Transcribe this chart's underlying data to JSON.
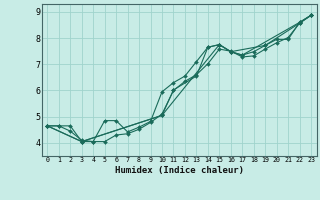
{
  "xlabel": "Humidex (Indice chaleur)",
  "bg_color": "#c8ece6",
  "grid_color": "#a0d4cc",
  "line_color": "#1a6b5a",
  "xlim": [
    -0.5,
    23.5
  ],
  "ylim": [
    3.5,
    9.3
  ],
  "xticks": [
    0,
    1,
    2,
    3,
    4,
    5,
    6,
    7,
    8,
    9,
    10,
    11,
    12,
    13,
    14,
    15,
    16,
    17,
    18,
    19,
    20,
    21,
    22,
    23
  ],
  "yticks": [
    4,
    5,
    6,
    7,
    8,
    9
  ],
  "lines": [
    {
      "x": [
        0,
        1,
        2,
        3,
        4,
        5,
        6,
        7,
        8,
        9,
        10,
        11,
        12,
        13,
        14,
        15,
        16,
        17,
        18,
        19,
        20,
        21,
        22,
        23
      ],
      "y": [
        4.65,
        4.65,
        4.65,
        4.05,
        4.05,
        4.85,
        4.85,
        4.42,
        4.6,
        4.82,
        5.95,
        6.3,
        6.55,
        7.1,
        7.65,
        7.75,
        7.48,
        7.35,
        7.48,
        7.72,
        7.95,
        7.95,
        8.6,
        8.87
      ]
    },
    {
      "x": [
        0,
        1,
        2,
        3,
        4,
        5,
        6,
        7,
        8,
        9,
        10,
        11,
        12,
        13,
        14,
        15,
        16,
        17,
        18,
        19,
        20,
        21,
        22,
        23
      ],
      "y": [
        4.65,
        4.65,
        4.45,
        4.1,
        4.05,
        4.05,
        4.3,
        4.35,
        4.52,
        4.78,
        5.1,
        6.0,
        6.35,
        6.6,
        7.02,
        7.58,
        7.5,
        7.28,
        7.32,
        7.58,
        7.82,
        8.02,
        8.57,
        8.87
      ]
    },
    {
      "x": [
        0,
        3,
        10,
        15,
        16,
        19,
        22,
        23
      ],
      "y": [
        4.65,
        4.05,
        5.05,
        7.75,
        7.48,
        7.72,
        8.57,
        8.87
      ]
    },
    {
      "x": [
        0,
        3,
        10,
        11,
        13,
        14,
        15,
        16,
        17,
        22,
        23
      ],
      "y": [
        4.65,
        4.05,
        5.05,
        6.02,
        6.55,
        7.65,
        7.75,
        7.48,
        7.35,
        8.6,
        8.87
      ]
    }
  ]
}
